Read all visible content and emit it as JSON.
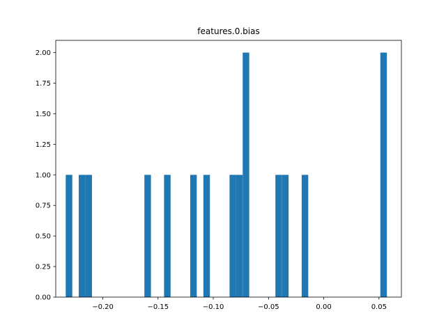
{
  "chart_data": {
    "type": "bar",
    "title": "features.0.bias",
    "xlabel": "",
    "ylabel": "",
    "xlim": [
      -0.2426,
      0.0703
    ],
    "ylim": [
      0,
      2.1
    ],
    "grid": false,
    "bar_color": "#1f77b4",
    "bin_width": 0.00593,
    "bins": [
      {
        "x": -0.2306,
        "value": 1
      },
      {
        "x": -0.2188,
        "value": 1
      },
      {
        "x": -0.2128,
        "value": 1
      },
      {
        "x": -0.1594,
        "value": 1
      },
      {
        "x": -0.1416,
        "value": 1
      },
      {
        "x": -0.1179,
        "value": 1
      },
      {
        "x": -0.106,
        "value": 1
      },
      {
        "x": -0.0823,
        "value": 1
      },
      {
        "x": -0.0764,
        "value": 1
      },
      {
        "x": -0.0704,
        "value": 2
      },
      {
        "x": -0.0408,
        "value": 1
      },
      {
        "x": -0.0348,
        "value": 1
      },
      {
        "x": -0.017,
        "value": 1
      },
      {
        "x": 0.0542,
        "value": 2
      }
    ],
    "x_ticks": [
      {
        "value": -0.2,
        "label": "−0.20"
      },
      {
        "value": -0.15,
        "label": "−0.15"
      },
      {
        "value": -0.1,
        "label": "−0.10"
      },
      {
        "value": -0.05,
        "label": "−0.05"
      },
      {
        "value": 0.0,
        "label": "0.00"
      },
      {
        "value": 0.05,
        "label": "0.05"
      }
    ],
    "y_ticks": [
      {
        "value": 0.0,
        "label": "0.00"
      },
      {
        "value": 0.25,
        "label": "0.25"
      },
      {
        "value": 0.5,
        "label": "0.50"
      },
      {
        "value": 0.75,
        "label": "0.75"
      },
      {
        "value": 1.0,
        "label": "1.00"
      },
      {
        "value": 1.25,
        "label": "1.25"
      },
      {
        "value": 1.5,
        "label": "1.50"
      },
      {
        "value": 1.75,
        "label": "1.75"
      },
      {
        "value": 2.0,
        "label": "2.00"
      }
    ]
  }
}
